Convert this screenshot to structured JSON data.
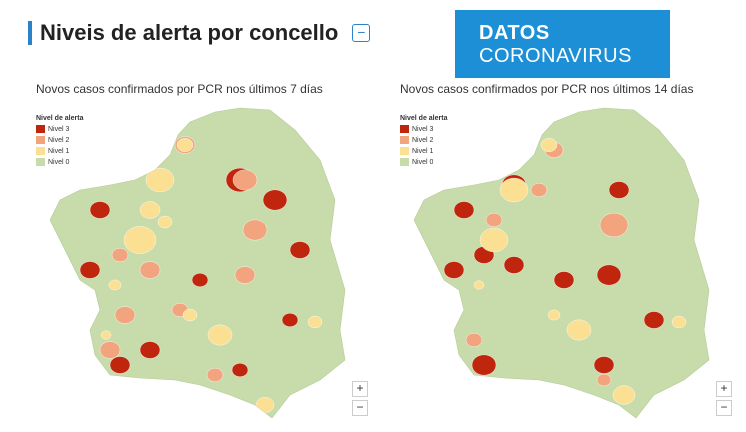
{
  "header": {
    "title": "Niveis de alerta por concello",
    "collapse_label": "−"
  },
  "logo": {
    "line1": "DATOS",
    "line2": "CORONAVIRUS"
  },
  "legend_title": "Nivel de alerta",
  "levels": [
    {
      "label": "Nivel 3",
      "color": "#c0250e"
    },
    {
      "label": "Nivel 2",
      "color": "#f1a47e"
    },
    {
      "label": "Nivel 1",
      "color": "#fbdf93"
    },
    {
      "label": "Nivel 0",
      "color": "#c8dcab"
    }
  ],
  "maps": [
    {
      "subtitle": "Novos casos confirmados por PCR nos últimos 7 días",
      "zoom_in": "+",
      "zoom_out": "−"
    },
    {
      "subtitle": "Novos casos confirmados por PCR nos últimos 14 días",
      "zoom_in": "+",
      "zoom_out": "−"
    }
  ]
}
